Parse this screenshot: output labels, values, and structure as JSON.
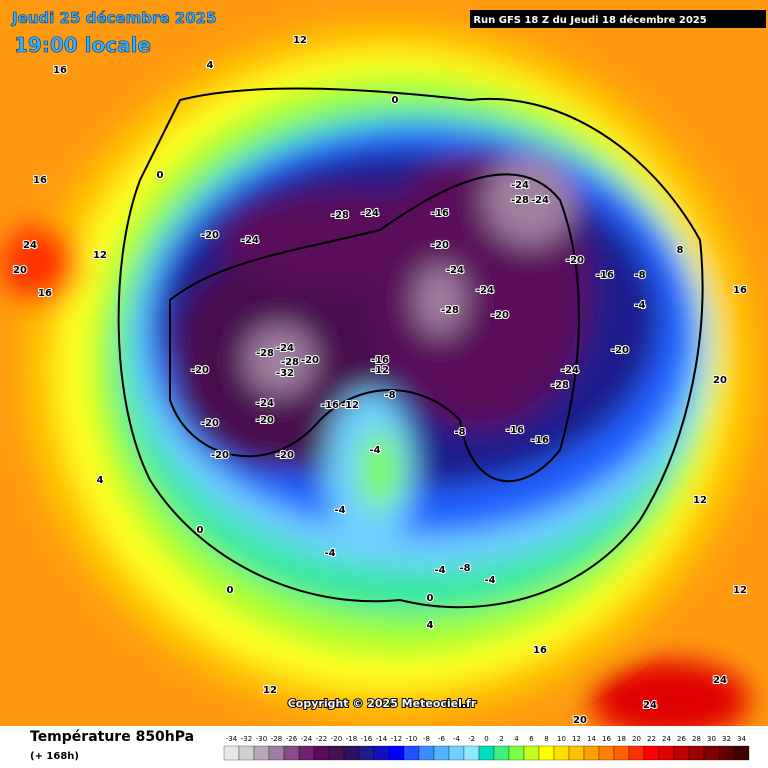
{
  "header": {
    "date": "Jeudi 25 décembre 2025",
    "time": "19:00 locale",
    "run": "Run GFS 18 Z du Jeudi 18 décembre 2025"
  },
  "copyright": "Copyright © 2025 Meteociel.fr",
  "legend": {
    "title": "Température 850hPa",
    "subtitle": "(+ 168h)",
    "ticks": [
      -34,
      -32,
      -30,
      -28,
      -26,
      -24,
      -22,
      -20,
      -18,
      -16,
      -14,
      -12,
      -10,
      -8,
      -6,
      -4,
      -2,
      0,
      2,
      4,
      6,
      8,
      10,
      12,
      14,
      16,
      18,
      20,
      22,
      24,
      26,
      28,
      30,
      32,
      34
    ],
    "colors": [
      "#e8e8e8",
      "#d0d0d0",
      "#b8a8b8",
      "#a080a0",
      "#884c88",
      "#702070",
      "#5a0a5a",
      "#46104e",
      "#2e1060",
      "#1c1c8c",
      "#1010c0",
      "#0000ff",
      "#2050ff",
      "#3c8cff",
      "#50b4ff",
      "#70d0ff",
      "#90e8ff",
      "#00e0c0",
      "#40f080",
      "#80ff40",
      "#c0ff20",
      "#ffff00",
      "#ffe000",
      "#ffc000",
      "#ffa000",
      "#ff8000",
      "#ff6000",
      "#ff3000",
      "#ff0000",
      "#e00000",
      "#c00000",
      "#a00000",
      "#800000",
      "#600000",
      "#400000"
    ]
  },
  "map_labels": [
    -20,
    -24,
    -28,
    -24,
    -16,
    -24,
    -28,
    -24,
    -20,
    -24,
    -28,
    -24,
    -20,
    -20,
    -16,
    -8,
    -4,
    -20,
    -24,
    -28,
    -16,
    -16,
    -8,
    -12,
    -16,
    -12,
    -8,
    -16,
    -24,
    -28,
    -28,
    -32,
    -20,
    -20,
    -24,
    -20,
    -20,
    -20,
    -20,
    -4,
    -4,
    -4,
    -4,
    -8,
    -4,
    0,
    0,
    0,
    4,
    24,
    20,
    16,
    12,
    16,
    16,
    4,
    12,
    12,
    16,
    24,
    24,
    12,
    12,
    20,
    16,
    8,
    0,
    0,
    4,
    20
  ]
}
